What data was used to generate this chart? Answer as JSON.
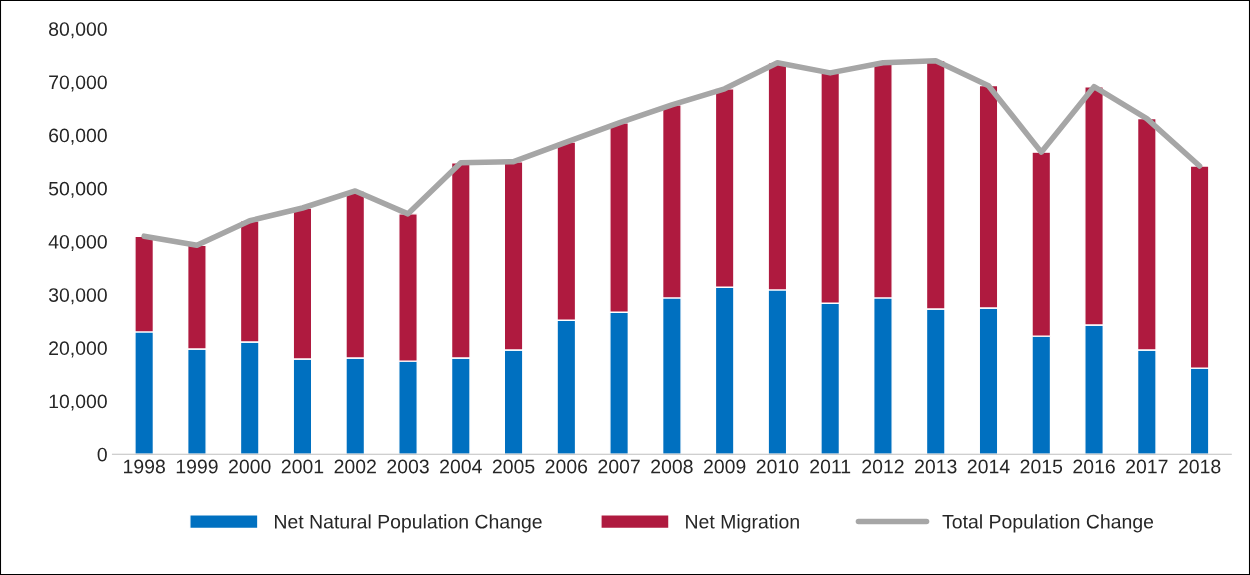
{
  "chart_data": {
    "type": "bar",
    "stacked": true,
    "categories": [
      "1998",
      "1999",
      "2000",
      "2001",
      "2002",
      "2003",
      "2004",
      "2005",
      "2006",
      "2007",
      "2008",
      "2009",
      "2010",
      "2011",
      "2012",
      "2013",
      "2014",
      "2015",
      "2016",
      "2017",
      "2018"
    ],
    "series": [
      {
        "name": "Net Natural Population Change",
        "color": "#0070c0",
        "values": [
          23000,
          19800,
          21100,
          17900,
          18100,
          17500,
          18100,
          19600,
          25200,
          26700,
          29400,
          31400,
          30900,
          28400,
          29400,
          27300,
          27500,
          22200,
          24300,
          19600,
          16200
        ]
      },
      {
        "name": "Net Migration",
        "color": "#af1a3f",
        "values": [
          18000,
          19500,
          22800,
          28400,
          31400,
          27700,
          36700,
          35400,
          33500,
          35600,
          36300,
          37300,
          42700,
          43300,
          44200,
          46700,
          41800,
          34600,
          44800,
          43500,
          38000
        ]
      },
      {
        "name": "Total Population Change",
        "type": "line",
        "color": "#a6a6a6",
        "values": [
          41000,
          39300,
          43900,
          46300,
          49500,
          45200,
          54800,
          55000,
          58700,
          62300,
          65700,
          68700,
          73600,
          71700,
          73600,
          74000,
          69300,
          56800,
          69100,
          63100,
          54200
        ]
      }
    ],
    "ylim": [
      0,
      80000
    ],
    "yticks": [
      {
        "value": 0,
        "label": "0"
      },
      {
        "value": 10000,
        "label": "10,000"
      },
      {
        "value": 20000,
        "label": "20,000"
      },
      {
        "value": 30000,
        "label": "30,000"
      },
      {
        "value": 40000,
        "label": "40,000"
      },
      {
        "value": 50000,
        "label": "50,000"
      },
      {
        "value": 60000,
        "label": "60,000"
      },
      {
        "value": 70000,
        "label": "70,000"
      },
      {
        "value": 80000,
        "label": "80,000"
      }
    ],
    "grid": false,
    "legend": "bottom",
    "marker": "none",
    "line_style": "solid"
  }
}
